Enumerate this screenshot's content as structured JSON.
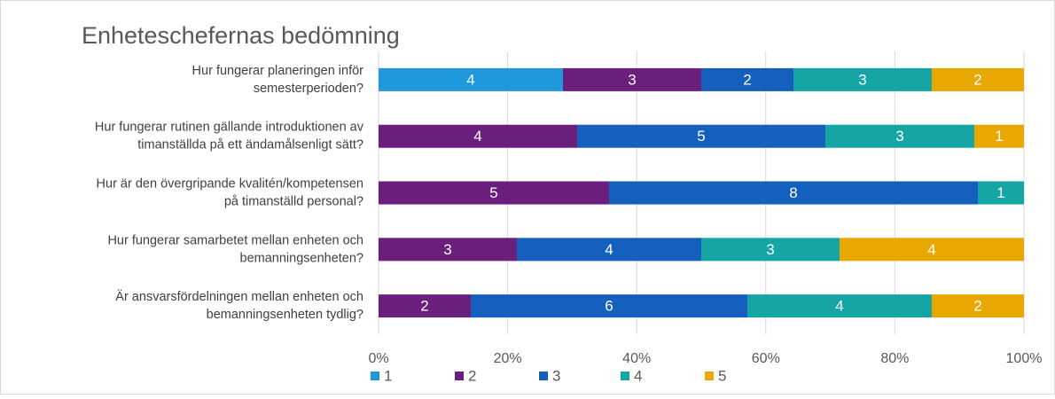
{
  "chart_data": {
    "type": "bar",
    "orientation": "horizontal",
    "stacking": "percent",
    "title": "Enheteschefernas bedömning",
    "categories": [
      "Hur fungerar planeringen inför\nsemesterperioden?",
      "Hur fungerar rutinen gällande introduktionen av\ntimanställda på ett ändamålsenligt sätt?",
      "Hur är den övergripande kvalitén/kompetensen\npå timanställd personal?",
      "Hur fungerar samarbetet mellan enheten och\nbemanningsenheten?",
      "Är ansvarsfördelningen mellan enheten och\nbemanningsenheten tydlig?"
    ],
    "series": [
      {
        "name": "1",
        "color": "#1f98dc",
        "values": [
          4,
          null,
          null,
          null,
          null
        ]
      },
      {
        "name": "2",
        "color": "#6b1f7c",
        "values": [
          3,
          4,
          5,
          3,
          2
        ]
      },
      {
        "name": "3",
        "color": "#1560bd",
        "values": [
          2,
          5,
          8,
          4,
          6
        ]
      },
      {
        "name": "4",
        "color": "#16a5a5",
        "values": [
          3,
          3,
          1,
          3,
          4
        ]
      },
      {
        "name": "5",
        "color": "#e8a800",
        "values": [
          2,
          1,
          null,
          4,
          2
        ]
      }
    ],
    "xlim": [
      0,
      100
    ],
    "xticks": [
      {
        "value": 0,
        "label": "0%"
      },
      {
        "value": 20,
        "label": "20%"
      },
      {
        "value": 40,
        "label": "40%"
      },
      {
        "value": 60,
        "label": "60%"
      },
      {
        "value": 80,
        "label": "80%"
      },
      {
        "value": 100,
        "label": "100%"
      }
    ],
    "grid": true,
    "legend": "bottom"
  }
}
